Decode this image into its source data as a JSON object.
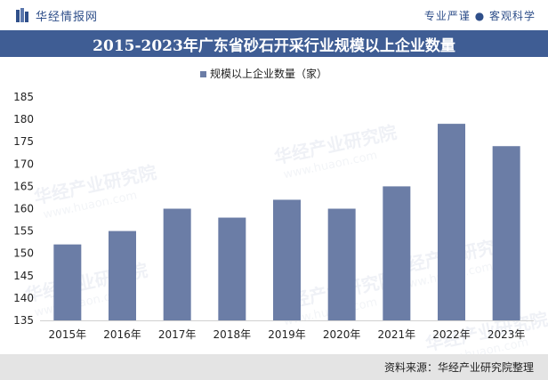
{
  "header": {
    "brand": "华经情报网",
    "tagline": "专业严谨 ● 客观科学"
  },
  "watermark": {
    "text": "华经产业研究院",
    "url": "www.huaon.com"
  },
  "footer": {
    "source": "资料来源：华经产业研究院整理"
  },
  "colors": {
    "bar": "#6b7da6",
    "title_band": "#3f5d94",
    "brand": "#2f4f8a"
  },
  "chart_data": {
    "type": "bar",
    "title": "2015-2023年广东省砂石开采行业规模以上企业数量",
    "categories": [
      "2015年",
      "2016年",
      "2017年",
      "2018年",
      "2019年",
      "2020年",
      "2021年",
      "2022年",
      "2023年"
    ],
    "series": [
      {
        "name": "规模以上企业数量（家）",
        "values": [
          152,
          155,
          160,
          158,
          162,
          160,
          165,
          179,
          174
        ]
      }
    ],
    "ylim": [
      135,
      185
    ],
    "yticks": [
      135,
      140,
      145,
      150,
      155,
      160,
      165,
      170,
      175,
      180,
      185
    ],
    "legend": "top-center",
    "grid": false
  }
}
